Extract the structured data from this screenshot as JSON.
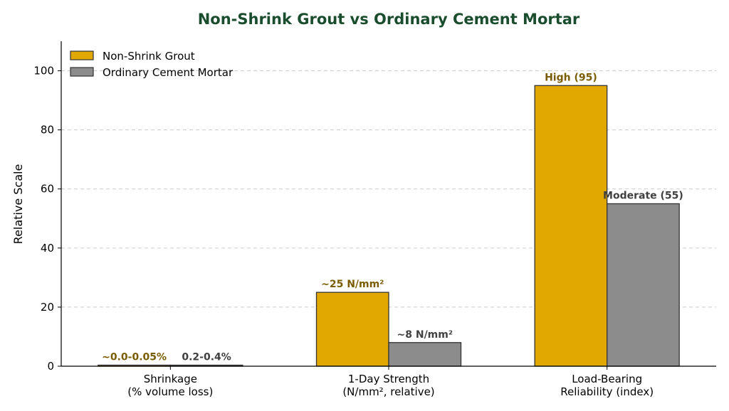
{
  "chart_data": {
    "type": "bar",
    "title": "Non-Shrink Grout vs Ordinary Cement Mortar",
    "ylabel": "Relative Scale",
    "xlabel": "",
    "ylim": [
      0,
      110
    ],
    "yticks": [
      0,
      20,
      40,
      60,
      80,
      100
    ],
    "grid": "y-dashed",
    "legend_position": "top-left",
    "categories": [
      [
        "Shrinkage",
        "(% volume loss)"
      ],
      [
        "1-Day Strength",
        "(N/mm², relative)"
      ],
      [
        "Load-Bearing",
        "Reliability (index)"
      ]
    ],
    "series": [
      {
        "name": "Non-Shrink Grout",
        "color": "#e0a800",
        "label_color": "#7a5c00",
        "values": [
          0.02,
          25,
          95
        ],
        "labels": [
          "~0.0-0.05%",
          "~25 N/mm²",
          "High (95)"
        ]
      },
      {
        "name": "Ordinary Cement Mortar",
        "color": "#8c8c8c",
        "label_color": "#404040",
        "values": [
          0.3,
          8,
          55
        ],
        "labels": [
          "0.2-0.4%",
          "~8 N/mm²",
          "Moderate (55)"
        ]
      }
    ],
    "title_color": "#1a4d2e"
  }
}
